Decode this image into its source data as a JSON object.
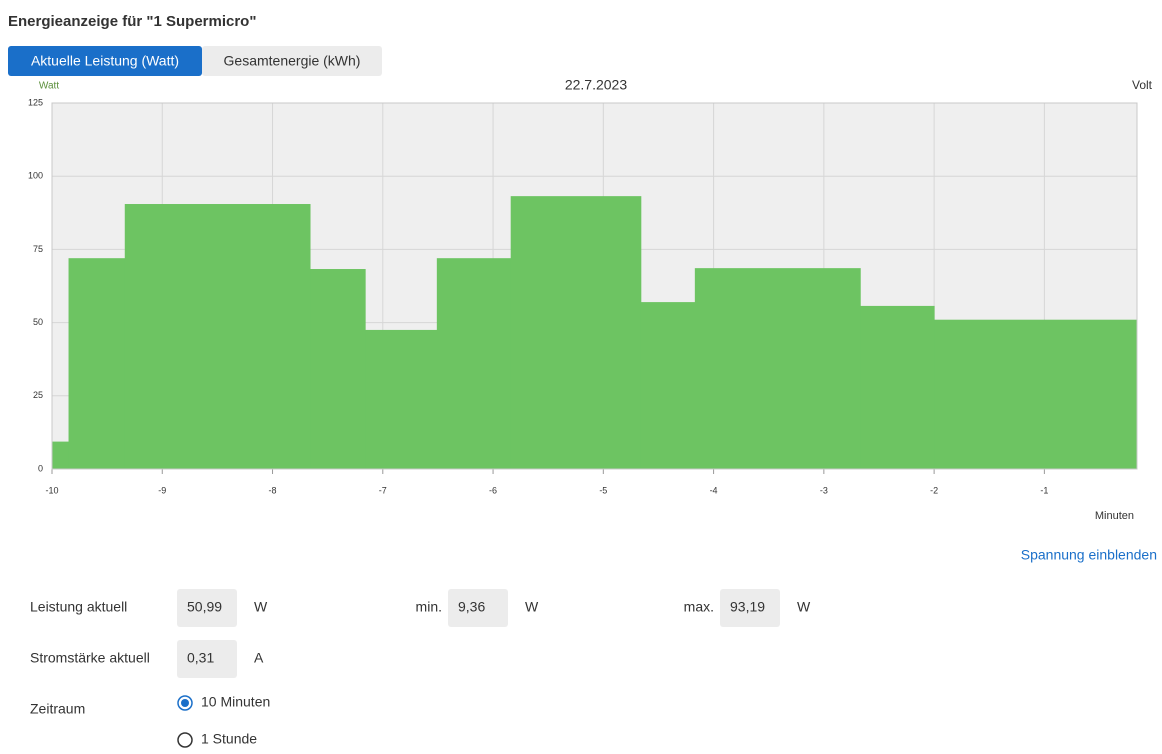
{
  "header": {
    "title": "Energieanzeige für \"1 Supermicro\""
  },
  "tabs": [
    "Aktuelle Leistung (Watt)",
    "Gesamtenergie (kWh)"
  ],
  "chart_data": {
    "type": "step",
    "title": "22.7.2023",
    "y_label": "Watt",
    "y2_label": "Volt",
    "x_label": "Minuten",
    "color": "#6dc462",
    "x": [
      -10,
      -9.85,
      -9.34,
      -7.66,
      -7.16,
      -6.51,
      -5.84,
      -4.66,
      -4.17,
      -2.67,
      -2.0
    ],
    "values": [
      9.36,
      72,
      90.5,
      68.3,
      47.5,
      72,
      93.19,
      57,
      68.6,
      55.7,
      50.99
    ],
    "xlim": [
      -10,
      -0.16
    ],
    "ylim": [
      0,
      125
    ],
    "xticks": [
      -10,
      -9,
      -8,
      -7,
      -6,
      -5,
      -4,
      -3,
      -2,
      -1
    ],
    "yticks": [
      0,
      25,
      50,
      75,
      100,
      125
    ],
    "grid": true
  },
  "link": "Spannung einblenden",
  "fields": [
    {
      "label": "Leistung aktuell",
      "value": "50,99",
      "unit": "W"
    },
    {
      "label": "min.",
      "value": "9,36",
      "unit": "W"
    },
    {
      "label": "max.",
      "value": "93,19",
      "unit": "W"
    },
    {
      "label": "Stromstärke aktuell",
      "value": "0,31",
      "unit": "A"
    }
  ],
  "period": {
    "label": "Zeitraum",
    "options": [
      "10 Minuten",
      "1 Stunde"
    ],
    "selected": 0
  }
}
